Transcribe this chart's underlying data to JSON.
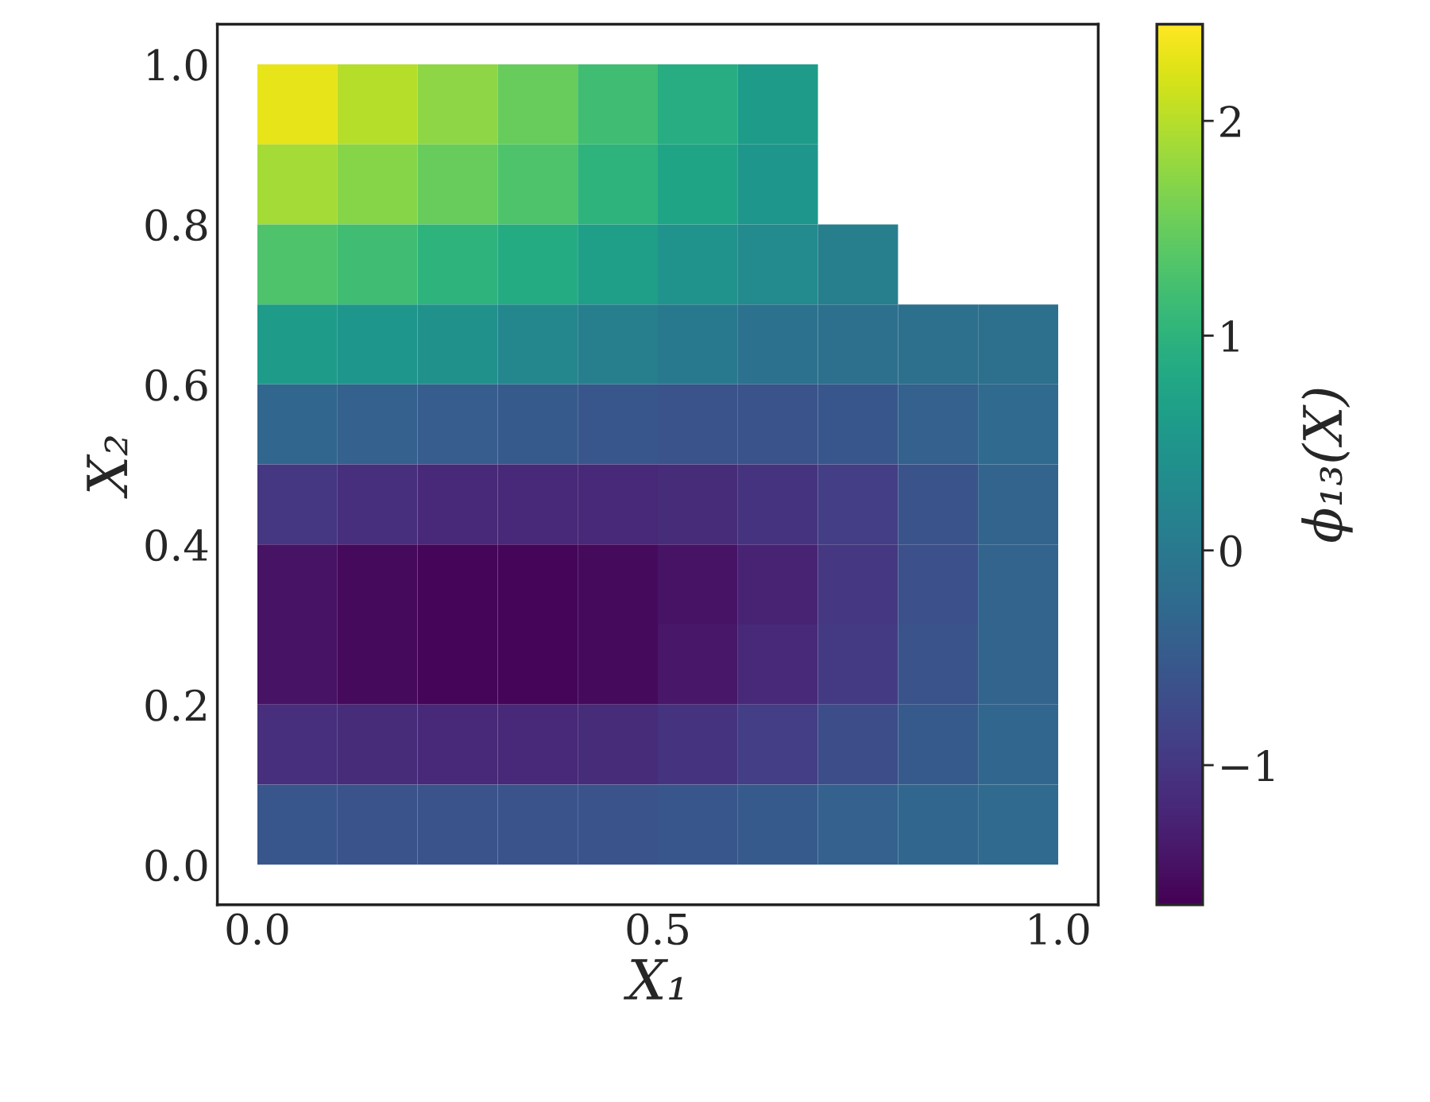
{
  "chart_data": {
    "type": "heatmap",
    "xlabel": "X₁",
    "ylabel": "X₂",
    "clabel": "ϕ₁₃(X)",
    "x": [
      0.05,
      0.15,
      0.25,
      0.35,
      0.45,
      0.55,
      0.65,
      0.75,
      0.85,
      0.95
    ],
    "y": [
      0.95,
      0.85,
      0.75,
      0.65,
      0.55,
      0.45,
      0.35,
      0.25,
      0.15,
      0.05
    ],
    "cells": [
      [
        2.3,
        2.0,
        1.75,
        1.5,
        1.2,
        0.9,
        0.6,
        null,
        null,
        null
      ],
      [
        1.9,
        1.7,
        1.5,
        1.3,
        1.0,
        0.75,
        0.5,
        null,
        null,
        null
      ],
      [
        1.3,
        1.2,
        1.0,
        0.85,
        0.65,
        0.45,
        0.3,
        0.1,
        null,
        null
      ],
      [
        0.6,
        0.5,
        0.4,
        0.25,
        0.1,
        0.0,
        -0.1,
        -0.15,
        -0.15,
        -0.15
      ],
      [
        -0.3,
        -0.4,
        -0.45,
        -0.5,
        -0.55,
        -0.6,
        -0.6,
        -0.55,
        -0.4,
        -0.25
      ],
      [
        -1.0,
        -1.1,
        -1.2,
        -1.2,
        -1.2,
        -1.15,
        -1.05,
        -0.9,
        -0.6,
        -0.35
      ],
      [
        -1.45,
        -1.55,
        -1.6,
        -1.6,
        -1.55,
        -1.45,
        -1.25,
        -1.0,
        -0.65,
        -0.35
      ],
      [
        -1.45,
        -1.55,
        -1.6,
        -1.6,
        -1.55,
        -1.4,
        -1.2,
        -0.95,
        -0.6,
        -0.35
      ],
      [
        -1.1,
        -1.15,
        -1.2,
        -1.2,
        -1.15,
        -1.05,
        -0.9,
        -0.7,
        -0.5,
        -0.3
      ],
      [
        -0.55,
        -0.6,
        -0.6,
        -0.6,
        -0.6,
        -0.55,
        -0.5,
        -0.4,
        -0.3,
        -0.25
      ]
    ],
    "xlim": [
      -0.05,
      1.05
    ],
    "ylim": [
      -0.05,
      1.05
    ],
    "xticks": [
      {
        "value": 0,
        "label": "0.0"
      },
      {
        "value": 0.5,
        "label": "0.5"
      },
      {
        "value": 1.0,
        "label": "1.0"
      }
    ],
    "yticks": [
      {
        "value": 0,
        "label": "0.0"
      },
      {
        "value": 0.2,
        "label": "0.2"
      },
      {
        "value": 0.4,
        "label": "0.4"
      },
      {
        "value": 0.6,
        "label": "0.6"
      },
      {
        "value": 0.8,
        "label": "0.8"
      },
      {
        "value": 1.0,
        "label": "1.0"
      }
    ],
    "clim": [
      -1.65,
      2.45
    ],
    "cticks": [
      {
        "value": -1,
        "label": "−1"
      },
      0,
      1,
      2
    ],
    "grid": false
  }
}
